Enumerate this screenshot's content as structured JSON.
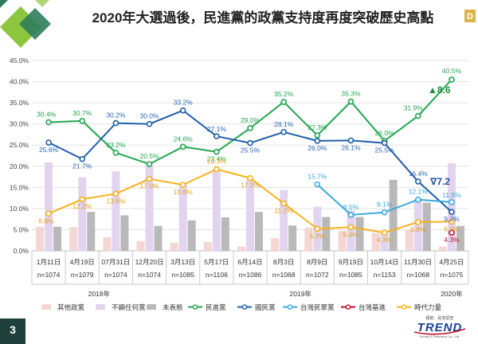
{
  "page": {
    "title": "2020年大選過後，民進黨的政黨支持度再度突破歷史高點",
    "page_number": "3",
    "logo_text": "TREND",
    "logo_subtitle": "趨勢．民意調查",
    "logo_tagline": "Survey & Research Co., Ltd."
  },
  "chart_data": {
    "type": "bar+line",
    "ylim": [
      0,
      45
    ],
    "yticks": [
      "0.0%",
      "5.0%",
      "10.0%",
      "15.0%",
      "20.0%",
      "25.0%",
      "30.0%",
      "35.0%",
      "40.0%",
      "45.0%"
    ],
    "ytick_values": [
      0,
      5,
      10,
      15,
      20,
      25,
      30,
      35,
      40,
      45
    ],
    "categories": [
      "1月11日",
      "4月19日",
      "07月31日",
      "12月20日",
      "3月13日",
      "5月17日",
      "6月14日",
      "8月3日",
      "8月9日",
      "9月19日",
      "10月14日",
      "11月30日",
      "4月25日"
    ],
    "sample_sizes": [
      "n=1074",
      "n=1079",
      "n=1074",
      "n=1074",
      "n=1085",
      "n=1106",
      "n=1086",
      "n=1068",
      "n=1072",
      "n=1085",
      "n=1153",
      "n=1068",
      "n=1075"
    ],
    "year_groups": [
      {
        "label": "2018年",
        "from": 0,
        "to": 3
      },
      {
        "label": "2019年",
        "from": 4,
        "to": 11
      },
      {
        "label": "2020年",
        "from": 12,
        "to": 12
      }
    ],
    "bar_series": [
      {
        "name": "其他政黨",
        "color": "#f4d6d3",
        "values": [
          5.7,
          5.6,
          3.2,
          2.3,
          1.9,
          2.1,
          1.0,
          3.0,
          5.5,
          4.7,
          4.2,
          5.0,
          1.0
        ]
      },
      {
        "name": "不顯任何黨",
        "color": "#e2d4ee",
        "values": [
          20.9,
          17.4,
          18.8,
          20.3,
          15.9,
          19.0,
          17.0,
          14.4,
          10.4,
          9.6,
          4.2,
          12.3,
          20.7
        ]
      },
      {
        "name": "未表態",
        "color": "#b9b9b9",
        "values": [
          5.7,
          9.2,
          8.4,
          5.9,
          7.2,
          7.9,
          9.2,
          6.0,
          8.0,
          8.0,
          16.8,
          11.4,
          5.9
        ]
      }
    ],
    "line_series": [
      {
        "name": "民進黨",
        "color": "#20a650",
        "label_color": "#20a650",
        "values": [
          30.4,
          30.7,
          23.2,
          20.5,
          24.6,
          23.4,
          29.0,
          35.2,
          27.3,
          35.3,
          26.0,
          31.9,
          40.5
        ],
        "labels": [
          "30.4%",
          "30.7%",
          "23.2%",
          "20.5%",
          "24.6%",
          "23.4%",
          "29.0%",
          "35.2%",
          "27.3%",
          "35.3%",
          "26.0%",
          "31.9%",
          "40.5%"
        ]
      },
      {
        "name": "國民黨",
        "color": "#1f5fa8",
        "label_color": "#2a66b5",
        "values": [
          25.6,
          21.7,
          30.2,
          30.0,
          33.2,
          27.1,
          25.5,
          28.1,
          26.0,
          26.1,
          25.5,
          16.4,
          9.2
        ],
        "labels": [
          "25.6%",
          "21.7%",
          "30.2%",
          "30.0%",
          "33.2%",
          "27.1%",
          "25.5%",
          "28.1%",
          "26.0%",
          "26.1%",
          "25.5%",
          "16.4%",
          "9.2%"
        ]
      },
      {
        "name": "台灣民眾黨",
        "color": "#3ba9dc",
        "label_color": "#3ba9dc",
        "start": 8,
        "values": [
          null,
          null,
          null,
          null,
          null,
          null,
          null,
          null,
          15.7,
          8.5,
          9.1,
          12.1,
          11.5
        ],
        "labels": [
          "",
          "",
          "",
          "",
          "",
          "",
          "",
          "",
          "15.7%",
          "8.5%",
          "9.1%",
          "12.1%",
          "11.5%"
        ]
      },
      {
        "name": "台灣基進",
        "color": "#c0122c",
        "label_color": "#c0122c",
        "start": 12,
        "values": [
          null,
          null,
          null,
          null,
          null,
          null,
          null,
          null,
          null,
          null,
          null,
          null,
          4.3
        ],
        "labels": [
          "",
          "",
          "",
          "",
          "",
          "",
          "",
          "",
          "",
          "",
          "",
          "",
          "4.3%"
        ]
      },
      {
        "name": "時代力量",
        "color": "#f5b21c",
        "label_color": "#e3a114",
        "values": [
          8.8,
          12.2,
          13.5,
          17.0,
          15.6,
          19.3,
          17.2,
          11.2,
          5.2,
          5.6,
          4.3,
          6.8,
          6.9
        ],
        "labels": [
          "8.8%",
          "12.2%",
          "13.5%",
          "17.0%",
          "15.6%",
          "19.3%",
          "17.2%",
          "11.2%",
          "5.2%",
          "5.6%",
          "4.3%",
          "6.8%",
          "6.9%"
        ]
      }
    ],
    "annotations": [
      {
        "text": "▲8.6",
        "color": "#1e8c3c"
      },
      {
        "text": "∇7.2",
        "color": "#1f4fa3"
      }
    ],
    "legend": [
      "其他政黨",
      "不顯任何黨",
      "未表態",
      "民進黨",
      "國民黨",
      "台灣民眾黨",
      "台灣基進",
      "時代力量"
    ],
    "grid": true,
    "legend_position": "bottom"
  }
}
